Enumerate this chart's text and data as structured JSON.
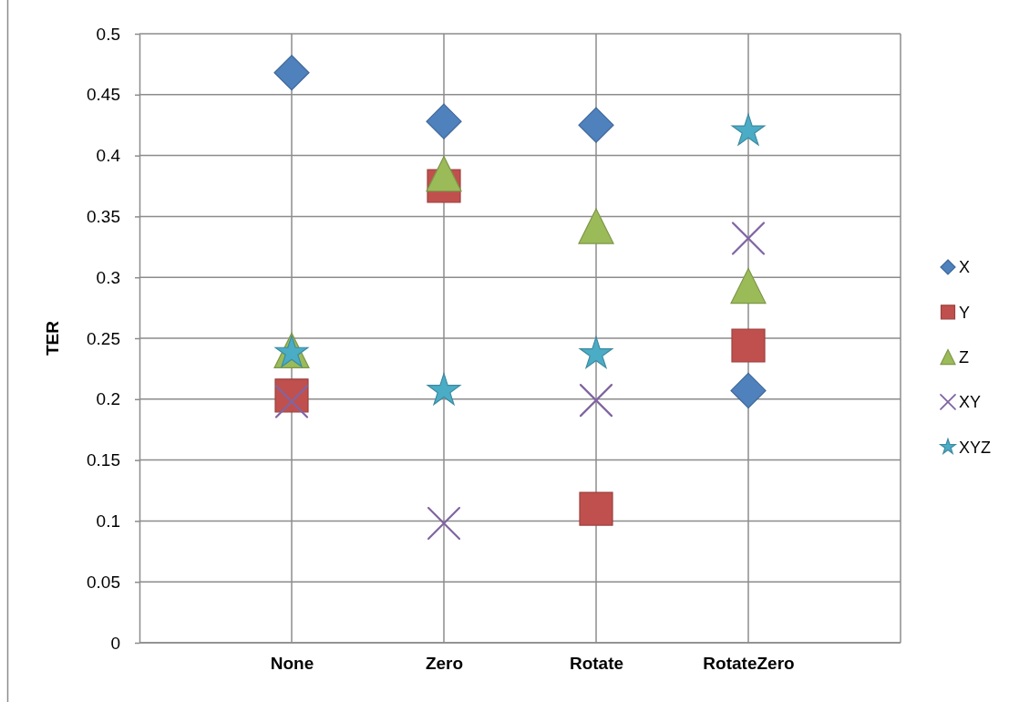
{
  "chart_data": {
    "type": "scatter",
    "ylabel": "TER",
    "categories": [
      "None",
      "Zero",
      "Rotate",
      "RotateZero"
    ],
    "series": [
      {
        "name": "X",
        "color": "#4f81bd",
        "marker": "diamond",
        "values": [
          0.468,
          0.428,
          0.425,
          0.207
        ]
      },
      {
        "name": "Y",
        "color": "#c0504d",
        "marker": "square",
        "values": [
          0.203,
          0.375,
          0.11,
          0.244
        ]
      },
      {
        "name": "Z",
        "color": "#9bbb59",
        "marker": "triangle",
        "values": [
          0.24,
          0.385,
          0.342,
          0.293
        ]
      },
      {
        "name": "XY",
        "color": "#8064a2",
        "marker": "cross",
        "values": [
          0.198,
          0.098,
          0.199,
          0.332
        ]
      },
      {
        "name": "XYZ",
        "color": "#4bacc6",
        "marker": "star",
        "values": [
          0.238,
          0.207,
          0.237,
          0.42
        ]
      }
    ],
    "ylim": [
      0,
      0.5
    ],
    "yticks": [
      0,
      0.05,
      0.1,
      0.15,
      0.2,
      0.25,
      0.3,
      0.35,
      0.4,
      0.45,
      0.5
    ],
    "grid": true,
    "legend": "right"
  }
}
